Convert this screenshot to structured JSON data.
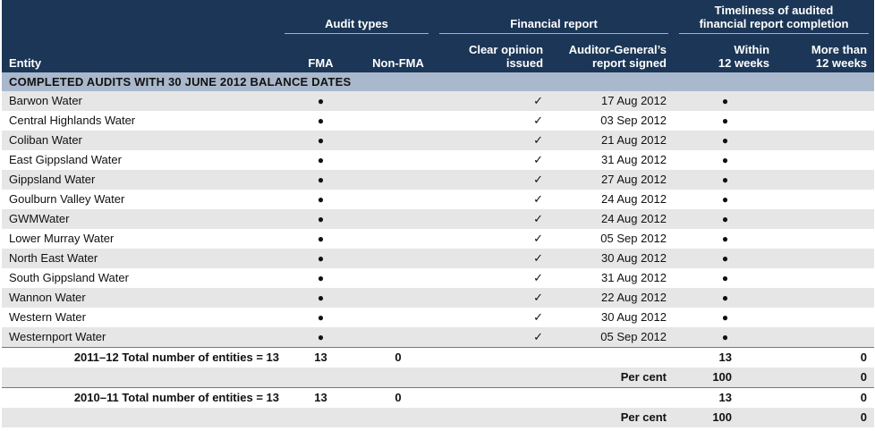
{
  "header": {
    "entity": "Entity",
    "groups": {
      "audit_types": "Audit types",
      "financial_report": "Financial report",
      "timeliness_line1": "Timeliness of audited",
      "timeliness_line2": "financial report completion"
    },
    "columns": {
      "fma": "FMA",
      "non_fma": "Non-FMA",
      "clear_opinion_line1": "Clear opinion",
      "clear_opinion_line2": "issued",
      "ag_signed_line1": "Auditor-General’s",
      "ag_signed_line2": "report signed",
      "within_line1": "Within",
      "within_line2": "12 weeks",
      "more_line1": "More than",
      "more_line2": "12 weeks"
    }
  },
  "section_title": "COMPLETED AUDITS WITH 30 JUNE 2012 BALANCE DATES",
  "symbols": {
    "dot": "●",
    "tick": "✓"
  },
  "rows": [
    {
      "entity": "Barwon Water",
      "date": "17 Aug 2012"
    },
    {
      "entity": "Central Highlands Water",
      "date": "03 Sep 2012"
    },
    {
      "entity": "Coliban Water",
      "date": "21 Aug 2012"
    },
    {
      "entity": "East Gippsland Water",
      "date": "31 Aug 2012"
    },
    {
      "entity": "Gippsland Water",
      "date": "27 Aug 2012"
    },
    {
      "entity": "Goulburn Valley Water",
      "date": "24 Aug 2012"
    },
    {
      "entity": "GWMWater",
      "date": "24 Aug 2012"
    },
    {
      "entity": "Lower Murray Water",
      "date": "05 Sep 2012"
    },
    {
      "entity": "North East Water",
      "date": "30 Aug 2012"
    },
    {
      "entity": "South Gippsland Water",
      "date": "31 Aug 2012"
    },
    {
      "entity": "Wannon Water",
      "date": "22 Aug 2012"
    },
    {
      "entity": "Western Water",
      "date": "30 Aug 2012"
    },
    {
      "entity": "Westernport Water",
      "date": "05 Sep 2012"
    }
  ],
  "totals": [
    {
      "label": "2011–12 Total number of entities = 13",
      "fma": "13",
      "non_fma": "0",
      "within": "13",
      "more": "0",
      "percent_label": "Per cent",
      "within_pct": "100",
      "more_pct": "0"
    },
    {
      "label": "2010–11 Total number of entities = 13",
      "fma": "13",
      "non_fma": "0",
      "within": "13",
      "more": "0",
      "percent_label": "Per cent",
      "within_pct": "100",
      "more_pct": "0"
    }
  ]
}
